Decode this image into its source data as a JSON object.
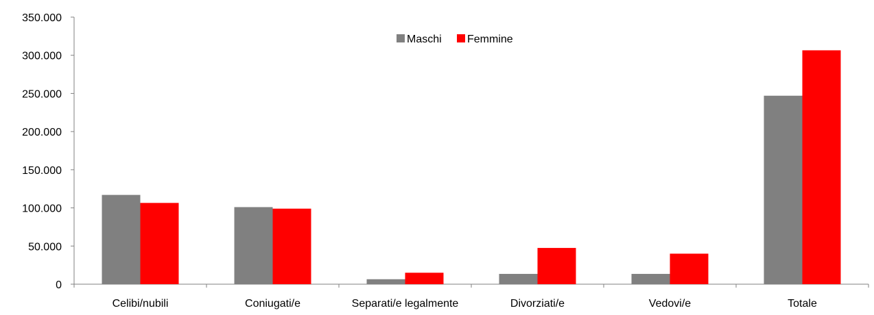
{
  "chart_data": {
    "type": "bar",
    "categories": [
      "Celibi/nubili",
      "Coniugati/e",
      "Separati/e legalmente",
      "Divorziati/e",
      "Vedovi/e",
      "Totale"
    ],
    "series": [
      {
        "name": "Maschi",
        "color": "#808080",
        "values": [
          117000,
          101000,
          6500,
          13500,
          13500,
          247000
        ]
      },
      {
        "name": "Femmine",
        "color": "#ff0000",
        "values": [
          106500,
          99000,
          15000,
          47500,
          40000,
          306500
        ]
      }
    ],
    "y_ticks": [
      "0",
      "50.000",
      "100.000",
      "150.000",
      "200.000",
      "250.000",
      "300.000",
      "350.000"
    ],
    "ylim": [
      0,
      350000
    ],
    "legend_position": "top-center",
    "grid": false
  }
}
